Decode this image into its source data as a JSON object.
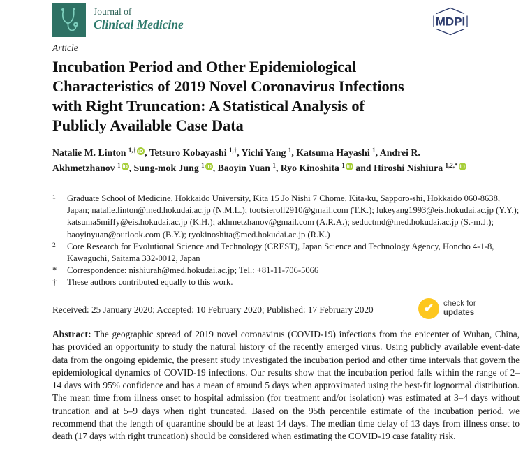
{
  "journal": {
    "name_line1": "Journal of",
    "name_line2": "Clinical Medicine",
    "brand_teal_dark": "#2E7164",
    "brand_teal_light": "#7ED0BE"
  },
  "publisher": {
    "logo_text": "MDPI",
    "navy": "#2E3D6E"
  },
  "article": {
    "kind": "Article",
    "title_lines": [
      "Incubation Period and Other Epidemiological",
      "Characteristics of 2019 Novel Coronavirus Infections",
      "with Right Truncation: A Statistical Analysis of",
      "Publicly Available Case Data"
    ],
    "authors": [
      {
        "name": "Natalie M. Linton",
        "sup": "1,†",
        "orcid": true,
        "sep": ","
      },
      {
        "name": "Tetsuro Kobayashi",
        "sup": "1,†",
        "orcid": false,
        "sep": ","
      },
      {
        "name": "Yichi Yang",
        "sup": "1",
        "orcid": false,
        "sep": ","
      },
      {
        "name": "Katsuma Hayashi",
        "sup": "1",
        "orcid": false,
        "sep": ","
      },
      {
        "name": "Andrei R. Akhmetzhanov",
        "sup": "1",
        "orcid": true,
        "sep": ","
      },
      {
        "name": "Sung-mok Jung",
        "sup": "1",
        "orcid": true,
        "sep": ","
      },
      {
        "name": "Baoyin Yuan",
        "sup": "1",
        "orcid": false,
        "sep": ","
      },
      {
        "name": "Ryo Kinoshita",
        "sup": "1",
        "orcid": true,
        "sep": " and"
      },
      {
        "name": "Hiroshi Nishiura",
        "sup": "1,2,*",
        "orcid": true,
        "sep": ""
      }
    ],
    "affiliations": [
      {
        "marker": "1",
        "text": "Graduate School of Medicine, Hokkaido University, Kita 15 Jo Nishi 7 Chome, Kita-ku, Sapporo-shi, Hokkaido 060-8638, Japan; natalie.linton@med.hokudai.ac.jp (N.M.L.); tootsieroll2910@gmail.com (T.K.); lukeyang1993@eis.hokudai.ac.jp (Y.Y.); katsuma5miffy@eis.hokudai.ac.jp (K.H.); akhmetzhanov@gmail.com (A.R.A.); seductmd@med.hokudai.ac.jp (S.-m.J.); baoyinyuan@outlook.com (B.Y.); ryokinoshita@med.hokudai.ac.jp (R.K.)"
      },
      {
        "marker": "2",
        "text": "Core Research for Evolutional Science and Technology (CREST), Japan Science and Technology Agency, Honcho 4-1-8, Kawaguchi, Saitama 332-0012, Japan"
      },
      {
        "marker": "*",
        "text": "Correspondence: nishiurah@med.hokudai.ac.jp; Tel.: +81-11-706-5066"
      },
      {
        "marker": "†",
        "text": "These authors contributed equally to this work."
      }
    ],
    "dates_line": "Received: 25 January 2020; Accepted: 10 February 2020; Published: 17 February 2020",
    "abstract_label": "Abstract:",
    "abstract_text": "The geographic spread of 2019 novel coronavirus (COVID-19) infections from the epicenter of Wuhan, China, has provided an opportunity to study the natural history of the recently emerged virus. Using publicly available event-date data from the ongoing epidemic, the present study investigated the incubation period and other time intervals that govern the epidemiological dynamics of COVID-19 infections. Our results show that the incubation period falls within the range of 2–14 days with 95% confidence and has a mean of around 5 days when approximated using the best-fit lognormal distribution. The mean time from illness onset to hospital admission (for treatment and/or isolation) was estimated at 3–4 days without truncation and at 5–9 days when right truncated. Based on the 95th percentile estimate of the incubation period, we recommend that the length of quarantine should be at least 14 days. The median time delay of 13 days from illness onset to death (17 days with right truncation) should be considered when estimating the COVID-19 case fatality risk."
  },
  "badges": {
    "orcid_glyph": "iD",
    "orcid_color": "#A6CE39",
    "check_for_updates": {
      "line1": "check for",
      "line2": "updates",
      "check_glyph": "✔",
      "yellow": "#FDC71F"
    }
  }
}
